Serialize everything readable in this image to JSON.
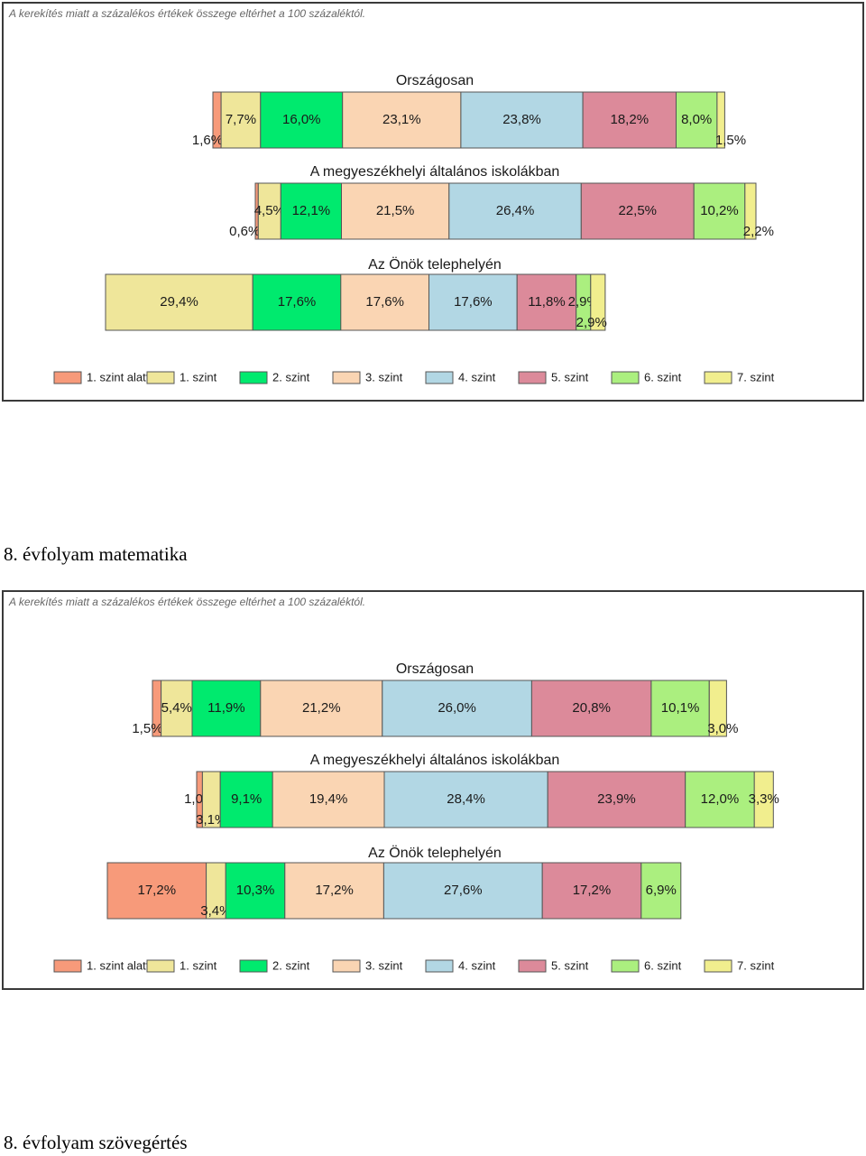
{
  "note": "A kerekítés miatt a százalékos értékek összege eltérhet a 100 százaléktól.",
  "legend": [
    "1. szint alatti",
    "1. szint",
    "2. szint",
    "3. szint",
    "4. szint",
    "5. szint",
    "6. szint",
    "7. szint"
  ],
  "colors": [
    "#F79A7A",
    "#EFE69A",
    "#00EA6E",
    "#FAD5B3",
    "#B2D7E4",
    "#DC8A9A",
    "#ABEF7F",
    "#F1EE8E"
  ],
  "captions": [
    "8. évfolyam matematika",
    "8. évfolyam szövegértés"
  ],
  "chart_data": [
    {
      "type": "bar",
      "stacked": "horizontal-100",
      "categories": [
        "1. szint alatti",
        "1. szint",
        "2. szint",
        "3. szint",
        "4. szint",
        "5. szint",
        "6. szint",
        "7. szint"
      ],
      "series": [
        {
          "name": "Országosan",
          "values": [
            1.6,
            7.7,
            16.0,
            23.1,
            23.8,
            18.2,
            8.0,
            1.5
          ],
          "labels": [
            "1,6%",
            "7,7%",
            "16,0%",
            "23,1%",
            "23,8%",
            "18,2%",
            "8,0%",
            "1,5%"
          ]
        },
        {
          "name": "A megyeszékhelyi általános iskolákban",
          "values": [
            0.6,
            4.5,
            12.1,
            21.5,
            26.4,
            22.5,
            10.2,
            2.2
          ],
          "labels": [
            "0,6%",
            "4,5%",
            "12,1%",
            "21,5%",
            "26,4%",
            "22,5%",
            "10,2%",
            "2,2%"
          ]
        },
        {
          "name": "Az Önök telephelyén",
          "values": [
            0.0,
            29.4,
            17.6,
            17.6,
            17.6,
            11.8,
            2.9,
            2.9
          ],
          "labels": [
            "",
            "29,4%",
            "17,6%",
            "17,6%",
            "17,6%",
            "11,8%",
            "2,9%",
            "2,9%"
          ]
        }
      ]
    },
    {
      "type": "bar",
      "stacked": "horizontal-100",
      "categories": [
        "1. szint alatti",
        "1. szint",
        "2. szint",
        "3. szint",
        "4. szint",
        "5. szint",
        "6. szint",
        "7. szint"
      ],
      "series": [
        {
          "name": "Országosan",
          "values": [
            1.5,
            5.4,
            11.9,
            21.2,
            26.0,
            20.8,
            10.1,
            3.0
          ],
          "labels": [
            "1,5%",
            "5,4%",
            "11,9%",
            "21,2%",
            "26,0%",
            "20,8%",
            "10,1%",
            "3,0%"
          ]
        },
        {
          "name": "A megyeszékhelyi általános iskolákban",
          "values": [
            1.0,
            3.1,
            9.1,
            19.4,
            28.4,
            23.9,
            12.0,
            3.3
          ],
          "labels": [
            "1,0%",
            "3,1%",
            "9,1%",
            "19,4%",
            "28,4%",
            "23,9%",
            "12,0%",
            "3,3%"
          ]
        },
        {
          "name": "Az Önök telephelyén",
          "values": [
            17.2,
            3.4,
            10.3,
            17.2,
            27.6,
            17.2,
            6.9,
            0.0
          ],
          "labels": [
            "17,2%",
            "3,4%",
            "10,3%",
            "17,2%",
            "27,6%",
            "17,2%",
            "6,9%",
            ""
          ]
        }
      ]
    }
  ]
}
